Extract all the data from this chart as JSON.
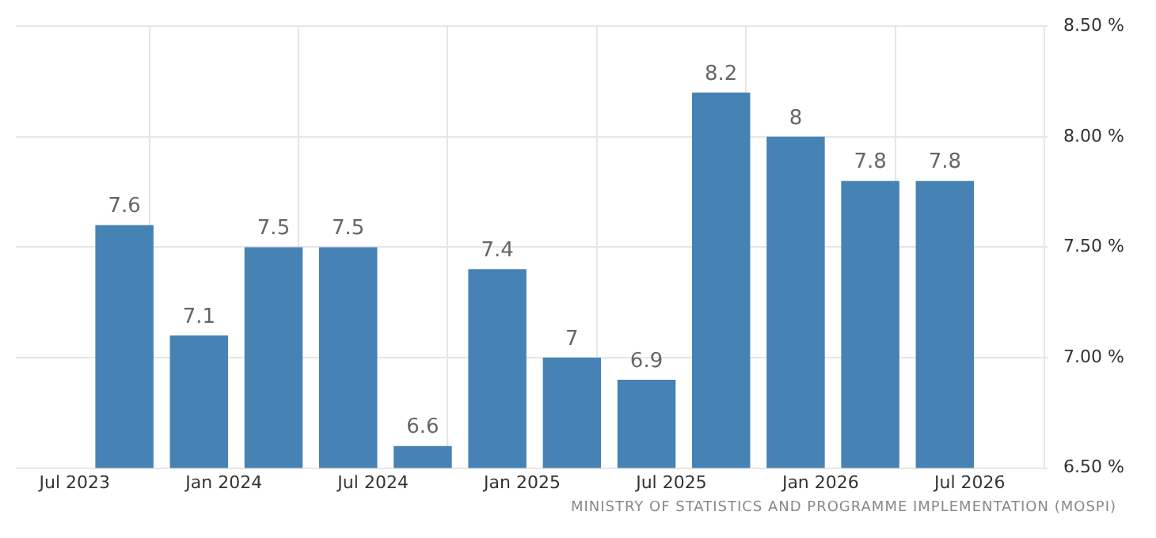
{
  "chart_data": {
    "type": "bar",
    "x": [
      "2023-09",
      "2023-12",
      "2024-03",
      "2024-06",
      "2024-09",
      "2024-12",
      "2025-03",
      "2025-06",
      "2025-09",
      "2025-12",
      "2026-03",
      "2026-06"
    ],
    "values": [
      7.6,
      7.1,
      7.5,
      7.5,
      6.6,
      7.4,
      7,
      6.9,
      8.2,
      8,
      7.8,
      7.8
    ],
    "color": "#4682b4",
    "data_labels": true,
    "xlim": [
      "2023-04-20",
      "2026-10-05"
    ],
    "xticks": [
      {
        "value": "2023-07",
        "label": "Jul 2023"
      },
      {
        "value": "2024-01",
        "label": "Jan 2024"
      },
      {
        "value": "2024-07",
        "label": "Jul 2024"
      },
      {
        "value": "2025-01",
        "label": "Jan 2025"
      },
      {
        "value": "2025-07",
        "label": "Jul 2025"
      },
      {
        "value": "2026-01",
        "label": "Jan 2026"
      },
      {
        "value": "2026-07",
        "label": "Jul 2026"
      }
    ],
    "ylim": [
      6.5,
      8.5
    ],
    "yticks": [
      {
        "value": 6.5,
        "label": "6.50 %"
      },
      {
        "value": 7,
        "label": "7.00 %"
      },
      {
        "value": 7.5,
        "label": "7.50 %"
      },
      {
        "value": 8,
        "label": "8.00 %"
      },
      {
        "value": 8.5,
        "label": "8.50 %"
      }
    ],
    "grid": true,
    "annotations": [
      "MINISTRY OF STATISTICS AND PROGRAMME IMPLEMENTATION (MOSPI)"
    ]
  }
}
